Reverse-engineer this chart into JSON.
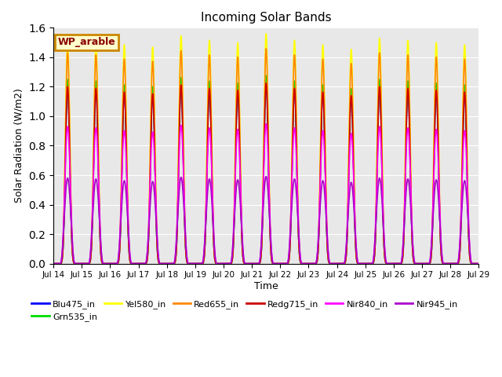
{
  "title": "Incoming Solar Bands",
  "xlabel": "Time",
  "ylabel": "Solar Radiation (W/m2)",
  "annotation": "WP_arable",
  "ylim": [
    0,
    1.6
  ],
  "num_days": 15,
  "pts_per_day": 288,
  "series": [
    {
      "name": "Blu475_in",
      "color": "#0000ff",
      "peak": 1.2,
      "lw": 1.2
    },
    {
      "name": "Grn535_in",
      "color": "#00dd00",
      "peak": 1.25,
      "lw": 1.2
    },
    {
      "name": "Yel580_in",
      "color": "#ffff00",
      "peak": 1.53,
      "lw": 1.2
    },
    {
      "name": "Red655_in",
      "color": "#ff8800",
      "peak": 1.43,
      "lw": 1.2
    },
    {
      "name": "Redg715_in",
      "color": "#cc0000",
      "peak": 1.2,
      "lw": 1.2
    },
    {
      "name": "Nir840_in",
      "color": "#ff00ff",
      "peak": 0.93,
      "lw": 1.2
    },
    {
      "name": "Nir945_in",
      "color": "#aa00cc",
      "peak": 0.58,
      "lw": 1.2
    }
  ],
  "peak_scales": [
    1.0,
    0.99,
    0.97,
    0.96,
    1.01,
    0.99,
    0.98,
    1.02,
    0.99,
    0.97,
    0.95,
    1.0,
    0.99,
    0.98,
    0.97
  ],
  "background_color": "#e8e8e8",
  "tick_dates": [
    "Jul 14",
    "Jul 15",
    "Jul 16",
    "Jul 17",
    "Jul 18",
    "Jul 19",
    "Jul 20",
    "Jul 21",
    "Jul 22",
    "Jul 23",
    "Jul 24",
    "Jul 25",
    "Jul 26",
    "Jul 27",
    "Jul 28",
    "Jul 29"
  ],
  "annotation_bbox": {
    "facecolor": "#ffffcc",
    "edgecolor": "#cc8800",
    "linewidth": 2
  },
  "annotation_color": "#880000",
  "legend_ncol": 6
}
